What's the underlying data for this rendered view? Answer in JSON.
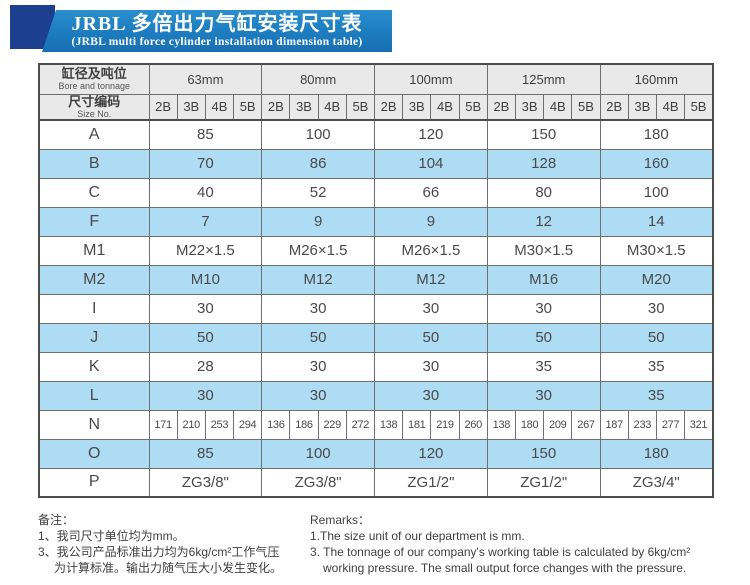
{
  "title": {
    "zh": "JRBL 多倍出力气缸安装尺寸表",
    "en": "(JRBL multi force cylinder installation dimension table)"
  },
  "colors": {
    "banner_blue": "#1e7fc2",
    "banner_navy": "#1d3f8f",
    "row_highlight": "#aedcf4",
    "header_gray": "#e9e9e9"
  },
  "table": {
    "corner_top": {
      "zh": "缸径及吨位",
      "en": "Bore and tonnage"
    },
    "corner_bottom": {
      "zh": "尺寸编码",
      "en": "Size No."
    },
    "bores": [
      "63mm",
      "80mm",
      "100mm",
      "125mm",
      "160mm"
    ],
    "sub_columns": [
      "2B",
      "3B",
      "4B",
      "5B"
    ],
    "rows": [
      {
        "label": "A",
        "shade": false,
        "values": [
          "85",
          "100",
          "120",
          "150",
          "180"
        ]
      },
      {
        "label": "B",
        "shade": true,
        "values": [
          "70",
          "86",
          "104",
          "128",
          "160"
        ]
      },
      {
        "label": "C",
        "shade": false,
        "values": [
          "40",
          "52",
          "66",
          "80",
          "100"
        ]
      },
      {
        "label": "F",
        "shade": true,
        "values": [
          "7",
          "9",
          "9",
          "12",
          "14"
        ]
      },
      {
        "label": "M1",
        "shade": false,
        "values": [
          "M22×1.5",
          "M26×1.5",
          "M26×1.5",
          "M30×1.5",
          "M30×1.5"
        ]
      },
      {
        "label": "M2",
        "shade": true,
        "values": [
          "M10",
          "M12",
          "M12",
          "M16",
          "M20"
        ]
      },
      {
        "label": "I",
        "shade": false,
        "values": [
          "30",
          "30",
          "30",
          "30",
          "30"
        ]
      },
      {
        "label": "J",
        "shade": true,
        "values": [
          "50",
          "50",
          "50",
          "50",
          "50"
        ]
      },
      {
        "label": "K",
        "shade": false,
        "values": [
          "28",
          "30",
          "30",
          "35",
          "35"
        ]
      },
      {
        "label": "L",
        "shade": true,
        "values": [
          "30",
          "30",
          "30",
          "30",
          "35"
        ]
      },
      {
        "label": "N",
        "shade": false,
        "per_sub_values": [
          [
            "171",
            "210",
            "253",
            "294"
          ],
          [
            "136",
            "186",
            "229",
            "272"
          ],
          [
            "138",
            "181",
            "219",
            "260"
          ],
          [
            "138",
            "180",
            "209",
            "267"
          ],
          [
            "187",
            "233",
            "277",
            "321"
          ]
        ]
      },
      {
        "label": "O",
        "shade": true,
        "values": [
          "85",
          "100",
          "120",
          "150",
          "180"
        ]
      },
      {
        "label": "P",
        "shade": false,
        "values": [
          "ZG3/8\"",
          "ZG3/8\"",
          "ZG1/2\"",
          "ZG1/2\"",
          "ZG3/4\""
        ]
      }
    ]
  },
  "notes_zh": {
    "heading": "备注：",
    "lines": [
      {
        "text": "1、我司尺寸单位均为mm。",
        "indent": false
      },
      {
        "text": "3、我公司产品标准出力均为6kg/cm²工作气压",
        "indent": false
      },
      {
        "text": "为计算标准。输出力随气压大小发生变化。",
        "indent": true
      }
    ]
  },
  "notes_en": {
    "heading": "Remarks：",
    "lines": [
      {
        "text": "1.The size unit of our department is mm.",
        "indent": false
      },
      {
        "text": "3. The tonnage of our company's working table is calculated by 6kg/cm²",
        "indent": false
      },
      {
        "text": "working pressure. The small output force changes with the pressure.",
        "indent": true
      }
    ]
  }
}
